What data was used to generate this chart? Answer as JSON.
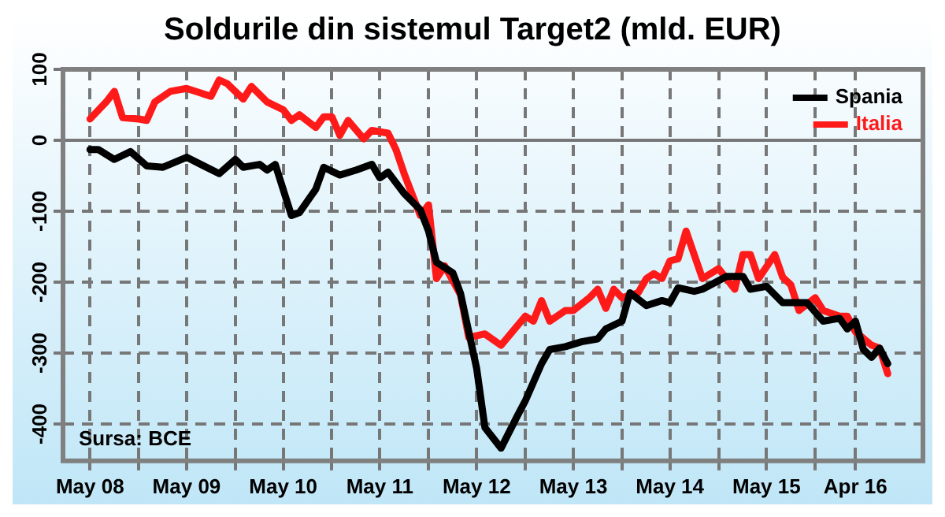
{
  "chart_data": {
    "type": "line",
    "title": "Soldurile din sistemul Target2 (mld. EUR)",
    "series": [
      {
        "name": "Spania",
        "color": "#000000",
        "x": [
          "2008-05",
          "2008-06",
          "2008-08",
          "2008-10",
          "2008-12",
          "2009-02",
          "2009-05",
          "2009-09",
          "2009-11",
          "2009-12",
          "2010-02",
          "2010-03",
          "2010-04",
          "2010-06",
          "2010-07",
          "2010-09",
          "2010-10",
          "2010-12",
          "2011-02",
          "2011-04",
          "2011-05",
          "2011-06",
          "2011-08",
          "2011-10",
          "2011-11",
          "2011-12",
          "2012-02",
          "2012-03",
          "2012-04",
          "2012-05",
          "2012-06",
          "2012-08",
          "2012-10",
          "2012-11",
          "2013-01",
          "2013-02",
          "2013-04",
          "2013-06",
          "2013-08",
          "2013-09",
          "2013-11",
          "2013-12",
          "2014-02",
          "2014-04",
          "2014-05",
          "2014-06",
          "2014-08",
          "2014-09",
          "2014-12",
          "2015-02",
          "2015-03",
          "2015-05",
          "2015-07",
          "2015-10",
          "2015-12",
          "2016-02",
          "2016-03",
          "2016-04",
          "2016-05",
          "2016-06",
          "2016-07",
          "2016-08"
        ],
        "values": [
          -13,
          -13,
          -27,
          -16,
          -36,
          -38,
          -24,
          -47,
          -27,
          -38,
          -34,
          -42,
          -34,
          -106,
          -102,
          -69,
          -38,
          -49,
          -42,
          -34,
          -53,
          -45,
          -75,
          -98,
          -128,
          -172,
          -187,
          -216,
          -270,
          -322,
          -405,
          -434,
          -389,
          -367,
          -315,
          -295,
          -291,
          -284,
          -280,
          -266,
          -255,
          -215,
          -233,
          -226,
          -229,
          -208,
          -213,
          -210,
          -192,
          -192,
          -210,
          -206,
          -229,
          -229,
          -255,
          -251,
          -266,
          -255,
          -295,
          -306,
          -293,
          -315
        ]
      },
      {
        "name": "Italia",
        "color": "#ff1a1a",
        "x": [
          "2008-05",
          "2008-07",
          "2008-08",
          "2008-09",
          "2008-11",
          "2008-12",
          "2009-01",
          "2009-03",
          "2009-05",
          "2009-08",
          "2009-09",
          "2009-10",
          "2009-12",
          "2010-01",
          "2010-03",
          "2010-05",
          "2010-06",
          "2010-07",
          "2010-09",
          "2010-10",
          "2010-11",
          "2010-12",
          "2011-01",
          "2011-03",
          "2011-04",
          "2011-06",
          "2011-07",
          "2011-08",
          "2011-09",
          "2011-10",
          "2011-11",
          "2011-12",
          "2012-01",
          "2012-03",
          "2012-04",
          "2012-06",
          "2012-08",
          "2012-11",
          "2012-12",
          "2013-01",
          "2013-02",
          "2013-04",
          "2013-05",
          "2013-07",
          "2013-08",
          "2013-09",
          "2013-10",
          "2013-11",
          "2014-01",
          "2014-02",
          "2014-03",
          "2014-04",
          "2014-05",
          "2014-06",
          "2014-07",
          "2014-09",
          "2014-11",
          "2015-01",
          "2015-02",
          "2015-03",
          "2015-04",
          "2015-06",
          "2015-07",
          "2015-08",
          "2015-09",
          "2015-11",
          "2015-12",
          "2016-02",
          "2016-03",
          "2016-04",
          "2016-06",
          "2016-07",
          "2016-08"
        ],
        "values": [
          30,
          54,
          69,
          32,
          30,
          28,
          54,
          69,
          73,
          62,
          85,
          80,
          58,
          76,
          54,
          43,
          28,
          36,
          18,
          33,
          33,
          7,
          28,
          2,
          14,
          10,
          -13,
          -47,
          -77,
          -106,
          -91,
          -195,
          -177,
          -218,
          -278,
          -273,
          -289,
          -248,
          -255,
          -226,
          -255,
          -240,
          -240,
          -222,
          -210,
          -237,
          -210,
          -222,
          -215,
          -195,
          -188,
          -195,
          -170,
          -167,
          -128,
          -195,
          -181,
          -210,
          -161,
          -161,
          -195,
          -161,
          -193,
          -204,
          -240,
          -222,
          -240,
          -248,
          -248,
          -270,
          -289,
          -293,
          -329
        ]
      }
    ],
    "xlim": [
      "2008-01-20",
      "2016-12-12"
    ],
    "xticks": [
      {
        "value": "2008-05",
        "label": "May 08"
      },
      {
        "value": "2008-11",
        "label": null
      },
      {
        "value": "2009-05",
        "label": "May 09"
      },
      {
        "value": "2009-11",
        "label": null
      },
      {
        "value": "2010-05",
        "label": "May 10"
      },
      {
        "value": "2010-11",
        "label": null
      },
      {
        "value": "2011-05",
        "label": "May 11"
      },
      {
        "value": "2011-11",
        "label": null
      },
      {
        "value": "2012-05",
        "label": "May 12"
      },
      {
        "value": "2012-11",
        "label": null
      },
      {
        "value": "2013-05",
        "label": "May 13"
      },
      {
        "value": "2013-11",
        "label": null
      },
      {
        "value": "2014-05",
        "label": "May 14"
      },
      {
        "value": "2014-11",
        "label": null
      },
      {
        "value": "2015-05",
        "label": "May 15"
      },
      {
        "value": "2015-11",
        "label": null
      },
      {
        "value": "2016-04",
        "label": "Apr 16"
      }
    ],
    "ylim": [
      -452,
      100
    ],
    "yticks": [
      100,
      0,
      -100,
      -200,
      -300,
      -400
    ],
    "ref_lines": [
      {
        "axis": "y",
        "value": 0,
        "color": "#777777"
      }
    ],
    "grid": true,
    "legend": "top right",
    "line_style": "solid",
    "marker": "none",
    "annotations": [
      "Sursa: BCE"
    ]
  }
}
